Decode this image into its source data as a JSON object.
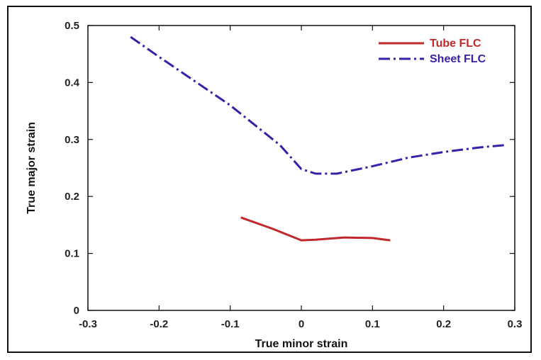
{
  "chart_data": {
    "type": "line",
    "xlabel": "True minor strain",
    "ylabel": "True major strain",
    "xlim": [
      -0.3,
      0.3
    ],
    "ylim": [
      0,
      0.5
    ],
    "xticks": [
      "-0.3",
      "-0.2",
      "-0.1",
      "0",
      "0.1",
      "0.2",
      "0.3"
    ],
    "yticks": [
      "0",
      "0.1",
      "0.2",
      "0.3",
      "0.4",
      "0.5"
    ],
    "grid": false,
    "legend_position": "top-right",
    "series": [
      {
        "name": "Tube FLC",
        "color": "#c0282c",
        "style": "solid",
        "points": [
          [
            -0.085,
            0.163
          ],
          [
            -0.04,
            0.143
          ],
          [
            0.0,
            0.123
          ],
          [
            0.02,
            0.124
          ],
          [
            0.06,
            0.128
          ],
          [
            0.1,
            0.127
          ],
          [
            0.125,
            0.123
          ]
        ]
      },
      {
        "name": "Sheet FLC",
        "color": "#3b1fa8",
        "style": "dashdot",
        "points": [
          [
            -0.24,
            0.48
          ],
          [
            -0.2,
            0.445
          ],
          [
            -0.1,
            0.36
          ],
          [
            -0.03,
            0.29
          ],
          [
            0.0,
            0.248
          ],
          [
            0.02,
            0.24
          ],
          [
            0.05,
            0.24
          ],
          [
            0.1,
            0.253
          ],
          [
            0.15,
            0.268
          ],
          [
            0.2,
            0.278
          ],
          [
            0.25,
            0.286
          ],
          [
            0.285,
            0.29
          ]
        ]
      }
    ]
  }
}
